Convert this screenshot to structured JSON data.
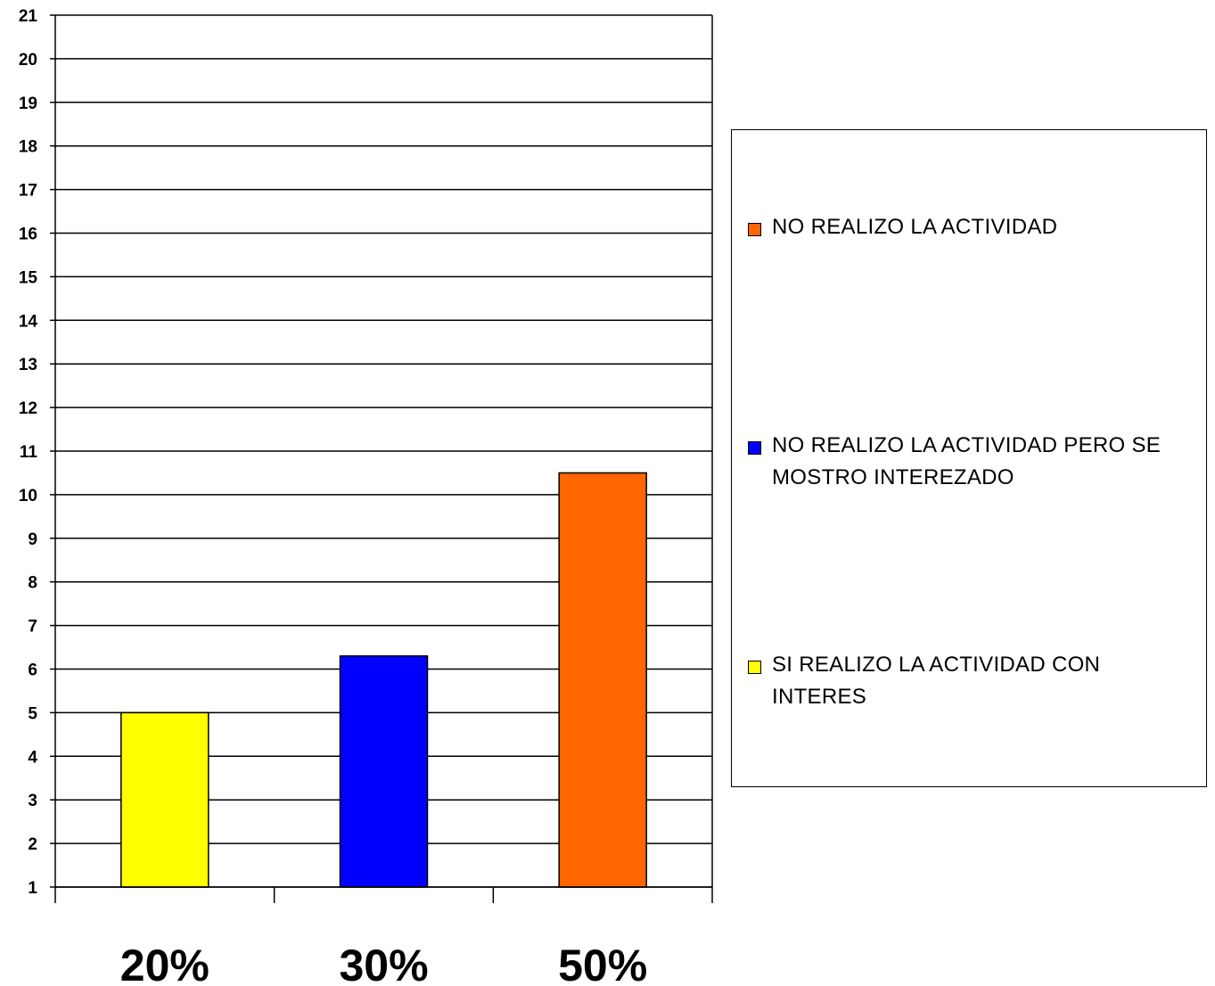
{
  "chart_data": {
    "type": "bar",
    "categories": [
      "20%",
      "30%",
      "50%"
    ],
    "values": [
      5.0,
      6.3,
      10.5
    ],
    "bar_colors": [
      "#ffff00",
      "#0000ff",
      "#ff6600"
    ],
    "ylim": [
      1,
      21
    ],
    "yticks": [
      "1",
      "2",
      "3",
      "4",
      "5",
      "6",
      "7",
      "8",
      "9",
      "10",
      "11",
      "12",
      "13",
      "14",
      "15",
      "16",
      "17",
      "18",
      "19",
      "20",
      "21"
    ],
    "grid": true,
    "legend_position": "right",
    "legend": [
      {
        "label": "NO REALIZO LA ACTIVIDAD",
        "color": "#ff6600"
      },
      {
        "label": "NO REALIZO LA ACTIVIDAD PERO SE MOSTRO INTEREZADO",
        "color": "#0000ff"
      },
      {
        "label": "SI REALIZO LA ACTIVIDAD CON INTERES",
        "color": "#ffff00"
      }
    ]
  }
}
